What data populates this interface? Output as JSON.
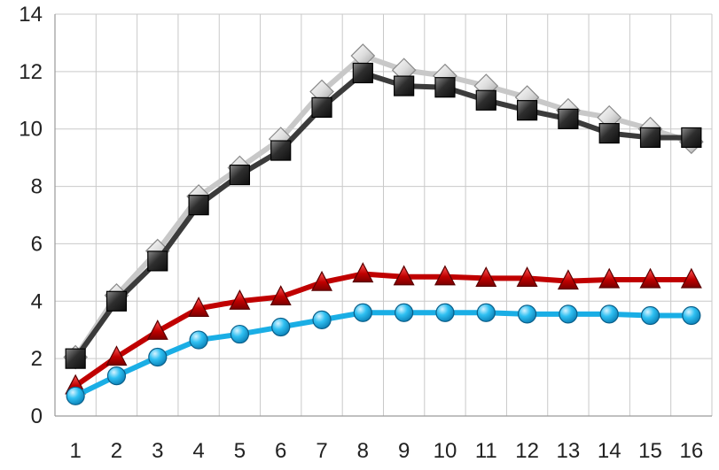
{
  "chart_data": {
    "type": "line",
    "x": [
      1,
      2,
      3,
      4,
      5,
      6,
      7,
      8,
      9,
      10,
      11,
      12,
      13,
      14,
      15,
      16
    ],
    "ylim": [
      0,
      14
    ],
    "yticks": [
      0,
      2,
      4,
      6,
      8,
      10,
      12,
      14
    ],
    "grid": {
      "horizontal": true,
      "vertical": true
    },
    "legend": "none",
    "series": [
      {
        "marker": "diamond",
        "color": "#c8c8c8",
        "values": [
          2.05,
          4.2,
          5.75,
          7.65,
          8.65,
          9.65,
          11.3,
          12.55,
          12.05,
          11.85,
          11.5,
          11.1,
          10.65,
          10.4,
          10.0,
          9.55
        ]
      },
      {
        "marker": "square",
        "color": "#3b3b3b",
        "values": [
          2.0,
          4.0,
          5.4,
          7.35,
          8.4,
          9.25,
          10.75,
          11.95,
          11.5,
          11.45,
          11.0,
          10.65,
          10.35,
          9.85,
          9.7,
          9.7
        ]
      },
      {
        "marker": "triangle",
        "color": "#c00000",
        "values": [
          1.05,
          2.05,
          2.95,
          3.75,
          4.0,
          4.15,
          4.65,
          4.95,
          4.85,
          4.85,
          4.8,
          4.8,
          4.7,
          4.75,
          4.75,
          4.75
        ]
      },
      {
        "marker": "circle",
        "color": "#1aaee5",
        "values": [
          0.7,
          1.4,
          2.05,
          2.65,
          2.85,
          3.1,
          3.35,
          3.6,
          3.6,
          3.6,
          3.6,
          3.55,
          3.55,
          3.55,
          3.5,
          3.5
        ]
      }
    ]
  }
}
